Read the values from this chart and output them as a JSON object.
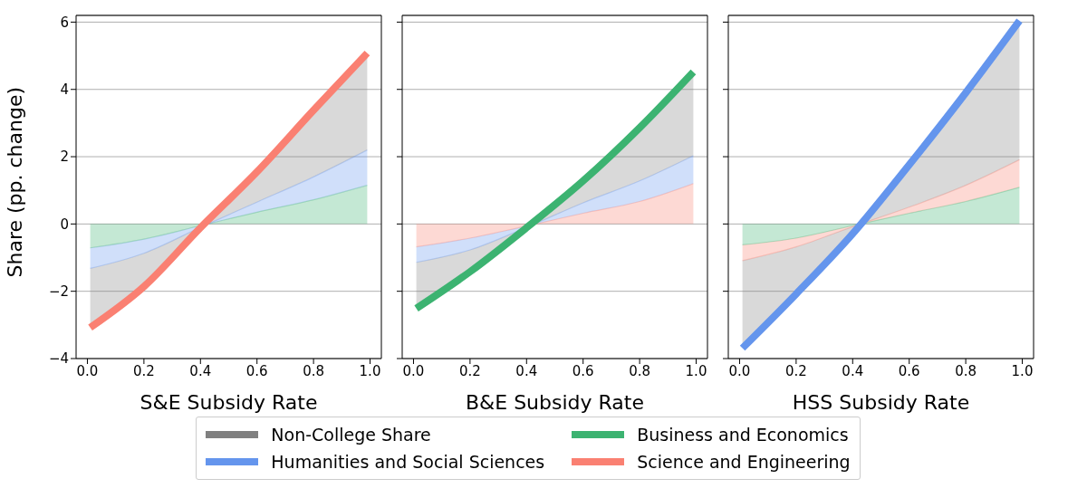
{
  "chart_data": [
    {
      "type": "area",
      "stacked": true,
      "xlabel": "S&E Subsidy Rate",
      "ylabel": "Share (pp. change)",
      "x": [
        0.01,
        0.2,
        0.4,
        0.6,
        0.8,
        0.99
      ],
      "xlim": [
        -0.04,
        1.04
      ],
      "ylim": [
        -4,
        6.2
      ],
      "xticks": [
        {
          "value": 0,
          "label": "0.0"
        },
        {
          "value": 0.2,
          "label": "0.2"
        },
        {
          "value": 0.4,
          "label": "0.4"
        },
        {
          "value": 0.6,
          "label": "0.6"
        },
        {
          "value": 0.8,
          "label": "0.8"
        },
        {
          "value": 1,
          "label": "1.0"
        }
      ],
      "yticks": [
        {
          "value": -4,
          "label": "−4"
        },
        {
          "value": -2,
          "label": "−2"
        },
        0,
        2,
        4,
        6
      ],
      "grid": "y",
      "legend": "bottom",
      "series": [
        {
          "name": "Business and Economics",
          "color": "#3cb371",
          "values": [
            -0.71,
            -0.45,
            -0.05,
            0.35,
            0.72,
            1.15
          ]
        },
        {
          "name": "Humanities and Social Sciences",
          "color": "#6495ed",
          "values": [
            -0.61,
            -0.42,
            -0.05,
            0.3,
            0.68,
            1.05
          ]
        },
        {
          "name": "Non-College Share",
          "color": "#808080",
          "values": [
            -1.68,
            -1.05,
            0,
            0.93,
            1.95,
            2.75
          ]
        },
        {
          "name": "Science and Engineering",
          "type": "line",
          "color": "#fa8072",
          "values": [
            -3.08,
            -1.86,
            -0.11,
            1.55,
            3.38,
            5.08
          ]
        }
      ]
    },
    {
      "type": "area",
      "stacked": true,
      "xlabel": "B&E Subsidy Rate",
      "x": [
        0.01,
        0.2,
        0.4,
        0.6,
        0.8,
        0.99
      ],
      "xlim": [
        -0.04,
        1.04
      ],
      "ylim": [
        -4,
        6.2
      ],
      "xticks": [
        {
          "value": 0,
          "label": "0.0"
        },
        {
          "value": 0.2,
          "label": "0.2"
        },
        {
          "value": 0.4,
          "label": "0.4"
        },
        {
          "value": 0.6,
          "label": "0.6"
        },
        {
          "value": 0.8,
          "label": "0.8"
        },
        {
          "value": 1,
          "label": "1.0"
        }
      ],
      "yticks": [
        {
          "value": -4,
          "label": null
        },
        {
          "value": -2,
          "label": null
        },
        {
          "value": 0,
          "label": null
        },
        {
          "value": 2,
          "label": null
        },
        {
          "value": 4,
          "label": null
        },
        {
          "value": 6,
          "label": null
        }
      ],
      "grid": "y",
      "legend": "bottom",
      "tick_labels": "x",
      "series": [
        {
          "name": "Science and Engineering",
          "color": "#fa8072",
          "values": [
            -0.68,
            -0.42,
            -0.06,
            0.32,
            0.67,
            1.2
          ]
        },
        {
          "name": "Humanities and Social Sciences",
          "color": "#6495ed",
          "values": [
            -0.46,
            -0.35,
            -0.04,
            0.31,
            0.61,
            0.83
          ]
        },
        {
          "name": "Non-College Share",
          "color": "#808080",
          "values": [
            -1.31,
            -0.65,
            0,
            0.65,
            1.58,
            2.37
          ]
        },
        {
          "name": "Business and Economics",
          "type": "line",
          "color": "#3cb371",
          "values": [
            -2.51,
            -1.42,
            -0.11,
            1.28,
            2.86,
            4.52
          ]
        }
      ]
    },
    {
      "type": "area",
      "stacked": true,
      "xlabel": "HSS Subsidy Rate",
      "x": [
        0.01,
        0.2,
        0.4,
        0.6,
        0.8,
        0.99
      ],
      "xlim": [
        -0.04,
        1.04
      ],
      "ylim": [
        -4,
        6.2
      ],
      "xticks": [
        {
          "value": 0,
          "label": "0.0"
        },
        {
          "value": 0.2,
          "label": "0.2"
        },
        {
          "value": 0.4,
          "label": "0.4"
        },
        {
          "value": 0.6,
          "label": "0.6"
        },
        {
          "value": 0.8,
          "label": "0.8"
        },
        {
          "value": 1,
          "label": "1.0"
        }
      ],
      "yticks": [
        {
          "value": -4,
          "label": null
        },
        {
          "value": -2,
          "label": null
        },
        {
          "value": 0,
          "label": null
        },
        {
          "value": 2,
          "label": null
        },
        {
          "value": 4,
          "label": null
        },
        {
          "value": 6,
          "label": null
        }
      ],
      "grid": "y",
      "legend": "bottom",
      "tick_labels": "x",
      "series": [
        {
          "name": "Business and Economics",
          "color": "#3cb371",
          "values": [
            -0.62,
            -0.42,
            -0.05,
            0.32,
            0.67,
            1.09
          ]
        },
        {
          "name": "Science and Engineering",
          "color": "#fa8072",
          "values": [
            -0.47,
            -0.26,
            -0.03,
            0.18,
            0.48,
            0.82
          ]
        },
        {
          "name": "Non-College Share",
          "color": "#808080",
          "values": [
            -2.51,
            -1.4,
            -0.17,
            1.26,
            2.75,
            4.04
          ]
        },
        {
          "name": "Humanities and Social Sciences",
          "type": "line",
          "color": "#6495ed",
          "values": [
            -3.69,
            -2.08,
            -0.29,
            1.76,
            3.9,
            6.04
          ]
        }
      ]
    }
  ]
}
